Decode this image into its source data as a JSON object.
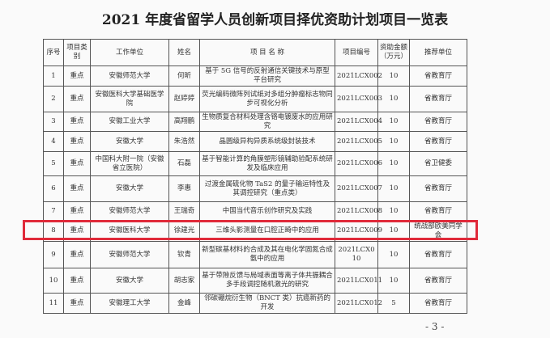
{
  "title": "2021 年度省留学人员创新项目择优资助计划项目一览表",
  "headers": [
    "序号",
    "项目类别",
    "工作单位",
    "姓名",
    "项 目 名 称",
    "项目编号",
    "资助金额（万元）",
    "推荐单位"
  ],
  "rows": [
    [
      "1",
      "重点",
      "安徽师范大学",
      "何昕",
      "基于 5G 信号的反射通信关键技术与原型平台研究",
      "2021LCX002",
      "10",
      "省教育厅"
    ],
    [
      "2",
      "重点",
      "安徽医科大学基础医学院",
      "赵婷婷",
      "荧光编码微阵列试纸对多组分肿瘤标志物同步可视化分析",
      "2021LCX003",
      "10",
      "省教育厅"
    ],
    [
      "3",
      "重点",
      "安徽工业大学",
      "高翔鹏",
      "生物质复合材料处理含铬电镀废水的应用研究",
      "2021LCX004",
      "10",
      "省教育厅"
    ],
    [
      "4",
      "重点",
      "安徽大学",
      "朱浩然",
      "晶圆级异构异质系统级封装技术",
      "2021LCX005",
      "10",
      "省教育厅"
    ],
    [
      "5",
      "重点",
      "中国科大附一院（安徽省立医院）",
      "石磊",
      "基于智能计算的角膜塑形镜辅助验配系统研发及临床应用",
      "2021LCX006",
      "10",
      "省卫健委"
    ],
    [
      "6",
      "重点",
      "安徽大学",
      "李惠",
      "过渡金属硫化物 TaS2 的量子输运特性及其调控研究（重点类）",
      "2021LCX007",
      "10",
      "省教育厅"
    ],
    [
      "7",
      "重点",
      "安徽师范大学",
      "王瑞奇",
      "中国当代音乐创作研究及实践",
      "2021LCX008",
      "10",
      "省教育厅"
    ],
    [
      "8",
      "重点",
      "安徽医科大学",
      "徐建光",
      "三维头影测量在口腔正畸中的应用",
      "2021LCX009",
      "10",
      "统战部欧美同学会"
    ],
    [
      "9",
      "重点",
      "安徽师范大学",
      "钦青",
      "新型碳基材料的合成及其在电化学固氮合成氨中的应用",
      "2021LCX010",
      "10",
      "省教育厅"
    ],
    [
      "10",
      "重点",
      "安徽大学",
      "胡志家",
      "基于带隙反馈与局域表面等离子体共振耦合多手段调控随机激光的研究",
      "2021LCX011",
      "10",
      "省教育厅"
    ],
    [
      "11",
      "重点",
      "安徽理工大学",
      "金峰",
      "邻碳硼烷衍生物（BNCT 类）抗癌新药的开发",
      "2021LCX012",
      "5",
      "省教育厅"
    ]
  ],
  "highlight_color": "#e02a3a",
  "page_number": "- 3 -"
}
